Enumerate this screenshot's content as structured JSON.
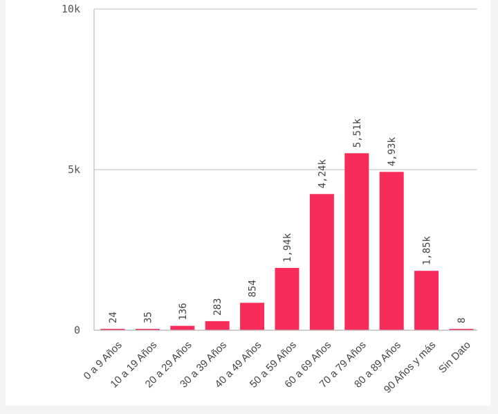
{
  "chart_data": {
    "type": "bar",
    "categories": [
      "0 a 9 Años",
      "10 a 19 Años",
      "20 a 29 Años",
      "30 a 39 Años",
      "40 a 49 Años",
      "50 a 59 Años",
      "60 a 69 Años",
      "70 a 79 Años",
      "80 a 89 Años",
      "90 Años y más",
      "Sin Dato"
    ],
    "values": [
      24,
      35,
      136,
      283,
      854,
      1940,
      4240,
      5510,
      4930,
      1850,
      8
    ],
    "value_labels": [
      "24",
      "35",
      "136",
      "283",
      "854",
      "1,94k",
      "4,24k",
      "5,51k",
      "4,93k",
      "1,85k",
      "8"
    ],
    "y_ticks": [
      0,
      5000,
      10000
    ],
    "y_tick_labels": [
      "0",
      "5k",
      "10k"
    ],
    "ylim": [
      0,
      10000
    ],
    "grid": true,
    "bar_color": "#f72c5b"
  }
}
